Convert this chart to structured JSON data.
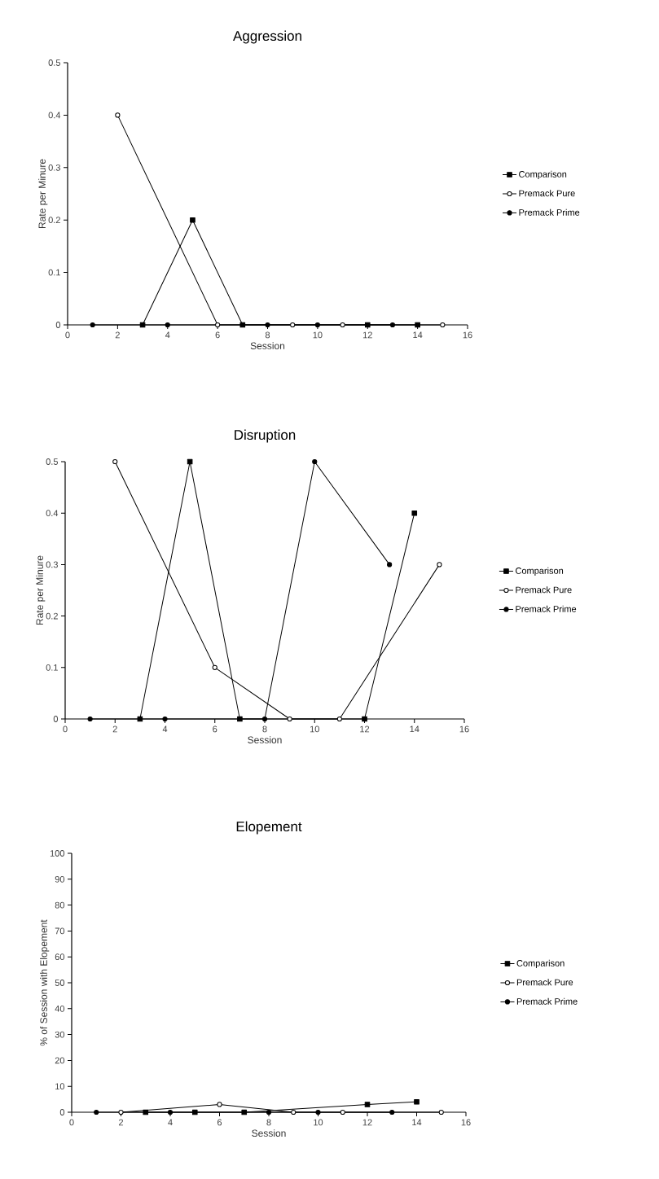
{
  "chart_data": [
    {
      "type": "line",
      "title": "Aggression",
      "xlabel": "Session",
      "ylabel": "Rate per Minure",
      "xlim": [
        0,
        16
      ],
      "xticks": [
        0,
        2,
        4,
        6,
        8,
        10,
        12,
        14,
        16
      ],
      "ylim": [
        0,
        0.5
      ],
      "yticks": [
        0,
        0.1,
        0.2,
        0.3,
        0.4,
        0.5
      ],
      "legend": "right",
      "grid": false,
      "series": [
        {
          "name": "Comparison",
          "color": "#000000",
          "marker": "square",
          "x": [
            3,
            5,
            7,
            12,
            14
          ],
          "values": [
            0,
            0.2,
            0,
            0,
            0
          ]
        },
        {
          "name": "Premack Pure",
          "color": "#000000",
          "marker": "circle",
          "x": [
            2,
            6,
            9,
            11,
            15
          ],
          "values": [
            0.4,
            0,
            0,
            0,
            0
          ]
        },
        {
          "name": "Premack Prime",
          "color": "#000000",
          "marker": "circle",
          "x": [
            1,
            4,
            8,
            10,
            13
          ],
          "values": [
            0,
            0,
            0,
            0,
            0
          ]
        }
      ]
    },
    {
      "type": "line",
      "title": "Disruption",
      "xlabel": "Session",
      "ylabel": "Rate per Minure",
      "xlim": [
        0,
        16
      ],
      "xticks": [
        0,
        2,
        4,
        6,
        8,
        10,
        12,
        14,
        16
      ],
      "ylim": [
        0,
        0.5
      ],
      "yticks": [
        0,
        0.1,
        0.2,
        0.3,
        0.4,
        0.5
      ],
      "legend": "right",
      "grid": false,
      "series": [
        {
          "name": "Comparison",
          "color": "#000000",
          "marker": "square",
          "x": [
            3,
            5,
            7,
            12,
            14
          ],
          "values": [
            0,
            0.5,
            0,
            0,
            0.4
          ]
        },
        {
          "name": "Premack Pure",
          "color": "#000000",
          "marker": "circle",
          "x": [
            2,
            6,
            9,
            11,
            15
          ],
          "values": [
            0.5,
            0.1,
            0,
            0,
            0.3
          ]
        },
        {
          "name": "Premack Prime",
          "color": "#000000",
          "marker": "circle",
          "x": [
            1,
            4,
            8,
            10,
            13
          ],
          "values": [
            0,
            0,
            0,
            0.5,
            0.3
          ]
        }
      ]
    },
    {
      "type": "line",
      "title": "Elopement",
      "xlabel": "Session",
      "ylabel": "% of Session with Elopement",
      "xlim": [
        0,
        16
      ],
      "xticks": [
        0,
        2,
        4,
        6,
        8,
        10,
        12,
        14,
        16
      ],
      "ylim": [
        0,
        100
      ],
      "yticks": [
        0,
        10,
        20,
        30,
        40,
        50,
        60,
        70,
        80,
        90,
        100
      ],
      "legend": "right",
      "grid": false,
      "series": [
        {
          "name": "Comparison",
          "color": "#000000",
          "marker": "square",
          "x": [
            3,
            5,
            7,
            12,
            14
          ],
          "values": [
            0,
            0,
            0,
            3,
            4
          ]
        },
        {
          "name": "Premack Pure",
          "color": "#000000",
          "marker": "circle",
          "x": [
            2,
            6,
            9,
            11,
            15
          ],
          "values": [
            0,
            3,
            0,
            0,
            0
          ]
        },
        {
          "name": "Premack Prime",
          "color": "#000000",
          "marker": "circle",
          "x": [
            1,
            4,
            8,
            10,
            13
          ],
          "values": [
            0,
            0,
            0,
            0,
            0
          ]
        }
      ]
    }
  ]
}
